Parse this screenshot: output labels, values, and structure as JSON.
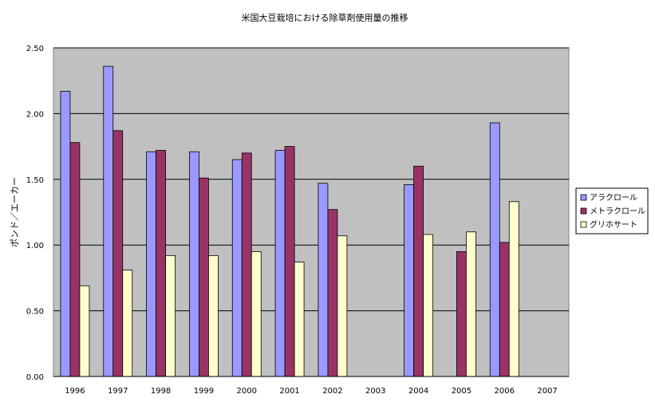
{
  "colors": {
    "plot_background": "#c0c0c0",
    "gridline": "#000000",
    "series": [
      "#9999ff",
      "#993366",
      "#ffffcc"
    ]
  },
  "chart_data": {
    "type": "bar",
    "title": "米国大豆栽培における除草剤使用量の推移",
    "xlabel": "",
    "ylabel": "ポンド／エーカー",
    "ylim": [
      0,
      2.5
    ],
    "y_ticks": [
      "0.00",
      "0.50",
      "1.00",
      "1.50",
      "2.00",
      "2.50"
    ],
    "grid": true,
    "legend_position": "right",
    "categories": [
      "1996",
      "1997",
      "1998",
      "1999",
      "2000",
      "2001",
      "2002",
      "2003",
      "2004",
      "2005",
      "2006",
      "2007"
    ],
    "series": [
      {
        "name": "アラクロール",
        "values": [
          2.17,
          2.36,
          1.71,
          1.71,
          1.65,
          1.72,
          1.47,
          null,
          1.46,
          null,
          1.93,
          null
        ]
      },
      {
        "name": "メトラクロール",
        "values": [
          1.78,
          1.87,
          1.72,
          1.51,
          1.7,
          1.75,
          1.27,
          null,
          1.6,
          0.95,
          1.02,
          null
        ]
      },
      {
        "name": "グリホサート",
        "values": [
          0.69,
          0.81,
          0.92,
          0.92,
          0.95,
          0.87,
          1.07,
          null,
          1.08,
          1.1,
          1.33,
          null
        ]
      }
    ]
  }
}
